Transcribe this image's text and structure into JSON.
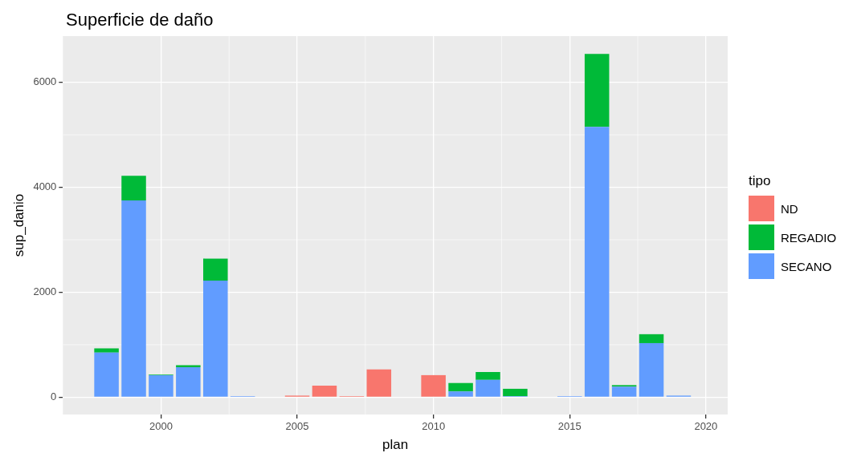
{
  "chart_data": {
    "type": "bar",
    "title": "Superficie de daño",
    "xlabel": "plan",
    "ylabel": "sup_danio",
    "legend_title": "tipo",
    "stacked": true,
    "x": [
      1998,
      1999,
      2000,
      2001,
      2002,
      2003,
      2004,
      2005,
      2006,
      2007,
      2008,
      2009,
      2010,
      2011,
      2012,
      2013,
      2014,
      2015,
      2016,
      2017,
      2018,
      2019
    ],
    "series": [
      {
        "name": "SECANO",
        "color": "#619cff",
        "values": [
          850,
          3750,
          420,
          570,
          2220,
          20,
          null,
          null,
          null,
          null,
          null,
          null,
          null,
          110,
          330,
          20,
          null,
          20,
          5150,
          200,
          1030,
          30
        ]
      },
      {
        "name": "REGADIO",
        "color": "#00ba38",
        "values": [
          80,
          470,
          10,
          40,
          420,
          null,
          null,
          null,
          null,
          null,
          null,
          null,
          null,
          160,
          150,
          140,
          null,
          null,
          1390,
          30,
          170,
          null
        ]
      },
      {
        "name": "ND",
        "color": "#f8766d",
        "values": [
          null,
          null,
          null,
          null,
          null,
          null,
          null,
          30,
          220,
          20,
          530,
          null,
          420,
          null,
          null,
          null,
          null,
          null,
          null,
          null,
          null,
          null
        ]
      }
    ],
    "xlim": [
      1996.4,
      2020.8
    ],
    "xticks": [
      2000,
      2005,
      2010,
      2015,
      2020
    ],
    "ylim": [
      -330,
      6880
    ],
    "yticks": [
      0,
      2000,
      4000,
      6000
    ],
    "grid": true,
    "legend": "right"
  }
}
